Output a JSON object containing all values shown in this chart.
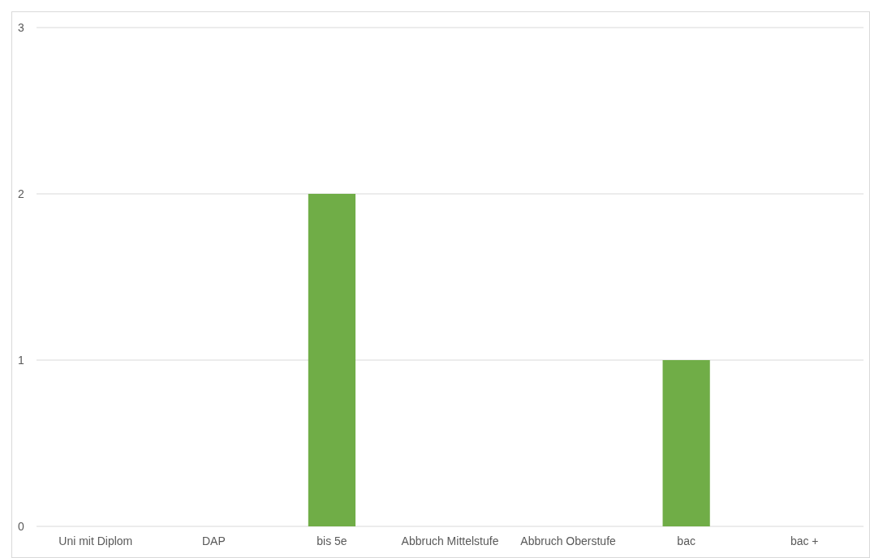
{
  "chart_data": {
    "type": "bar",
    "categories": [
      "Uni mit Diplom",
      "DAP",
      "bis 5e",
      "Abbruch Mittelstufe",
      "Abbruch Oberstufe",
      "bac",
      "bac +"
    ],
    "values": [
      0,
      0,
      2,
      0,
      0,
      1,
      0
    ],
    "color": "#70ad47",
    "ylim": [
      0,
      3
    ],
    "yticks": [
      0,
      1,
      2,
      3
    ],
    "grid": "y"
  }
}
